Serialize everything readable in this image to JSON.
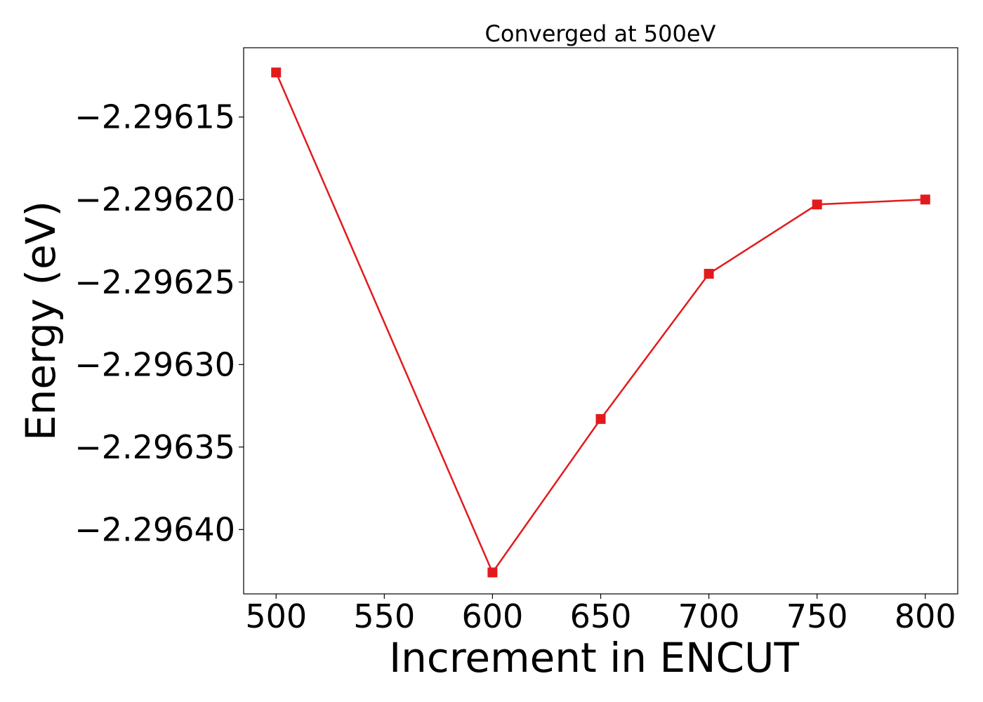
{
  "chart_data": {
    "type": "line",
    "title": "Converged at 500eV",
    "xlabel": "Increment in ENCUT",
    "ylabel": "Energy (eV)",
    "x": [
      500,
      600,
      650,
      700,
      750,
      800
    ],
    "series": [
      {
        "values": [
          -2.296123,
          -2.296426,
          -2.296333,
          -2.296245,
          -2.296203,
          -2.2962
        ]
      }
    ],
    "xlim": [
      485,
      815
    ],
    "ylim": [
      -2.296439,
      -2.296108
    ],
    "xticks": [
      500,
      550,
      600,
      650,
      700,
      750,
      800
    ],
    "xtick_labels": [
      "500",
      "550",
      "600",
      "650",
      "700",
      "750",
      "800"
    ],
    "yticks": [
      -2.29615,
      -2.2962,
      -2.29625,
      -2.2963,
      -2.29635,
      -2.2964
    ],
    "ytick_labels": [
      "−2.29615",
      "−2.29620",
      "−2.29625",
      "−2.29630",
      "−2.29635",
      "−2.29640"
    ],
    "marker": "square",
    "line_color": "#e31a1c",
    "grid": false,
    "legend": false
  }
}
